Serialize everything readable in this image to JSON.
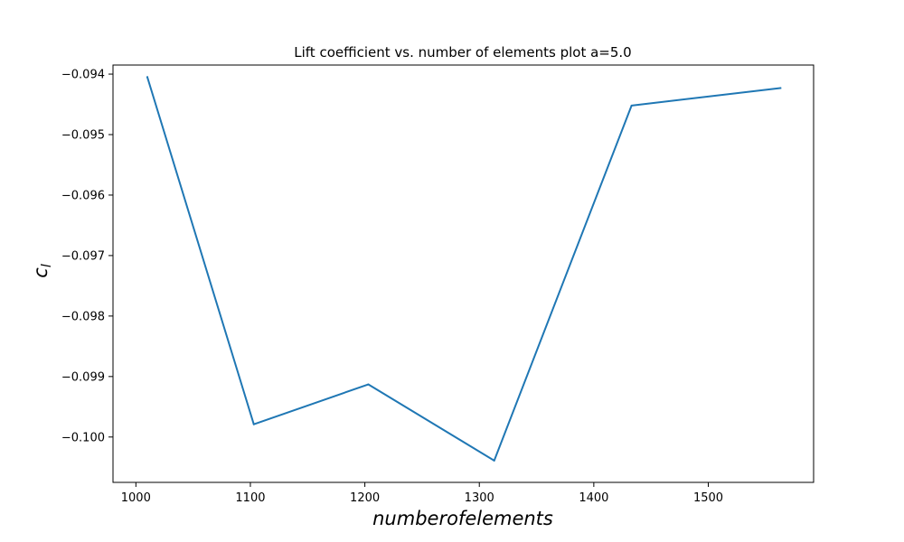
{
  "chart_data": {
    "type": "line",
    "title": "Lift coefficient vs. number of elements plot a=5.0",
    "xlabel": "numberofelements",
    "ylabel_main": "c",
    "ylabel_sub": "l",
    "xlim": [
      980,
      1592
    ],
    "ylim": [
      -0.10075,
      -0.09385
    ],
    "x_ticks": [
      1000,
      1100,
      1200,
      1300,
      1400,
      1500
    ],
    "y_ticks": [
      -0.094,
      -0.095,
      -0.096,
      -0.097,
      -0.098,
      -0.099,
      -0.1
    ],
    "x_tick_labels": [
      "1000",
      "1100",
      "1200",
      "1300",
      "1400",
      "1500"
    ],
    "y_tick_labels": [
      "−0.094",
      "−0.095",
      "−0.096",
      "−0.097",
      "−0.098",
      "−0.099",
      "−0.100"
    ],
    "grid": false,
    "series": [
      {
        "color": "#1f77b4",
        "x": [
          1010,
          1103,
          1203,
          1313,
          1433,
          1563
        ],
        "y": [
          -0.09405,
          -0.09979,
          -0.09913,
          -0.10039,
          -0.09452,
          -0.09423
        ]
      }
    ]
  }
}
